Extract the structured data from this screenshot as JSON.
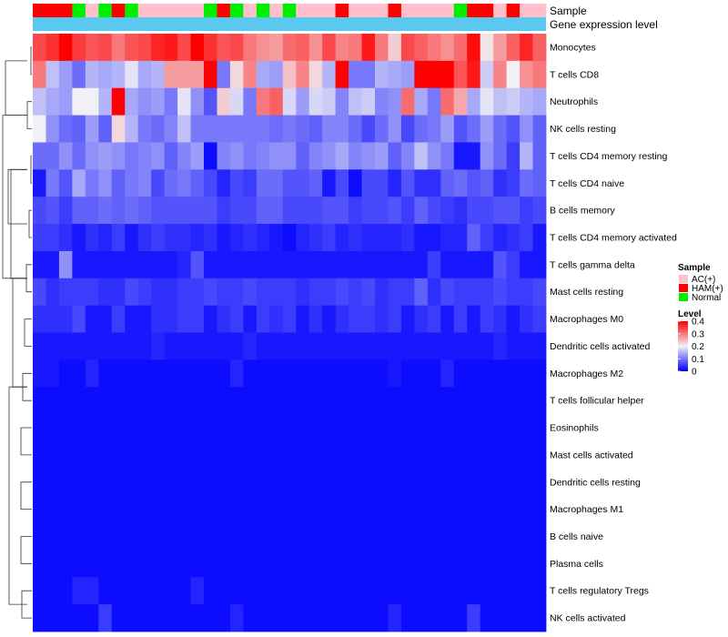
{
  "chart_data": {
    "type": "heatmap",
    "annotation_labels": {
      "sample": "Sample",
      "gene": "Gene expression level"
    },
    "sample_annotation": [
      "HAM(+)",
      "HAM(+)",
      "HAM(+)",
      "Normal",
      "AC(+)",
      "Normal",
      "HAM(+)",
      "Normal",
      "AC(+)",
      "AC(+)",
      "AC(+)",
      "AC(+)",
      "AC(+)",
      "Normal",
      "HAM(+)",
      "Normal",
      "AC(+)",
      "Normal",
      "AC(+)",
      "Normal",
      "AC(+)",
      "AC(+)",
      "AC(+)",
      "HAM(+)",
      "AC(+)",
      "AC(+)",
      "AC(+)",
      "HAM(+)",
      "AC(+)",
      "AC(+)",
      "AC(+)",
      "AC(+)",
      "Normal",
      "HAM(+)",
      "HAM(+)",
      "AC(+)",
      "HAM(+)",
      "AC(+)",
      "AC(+)"
    ],
    "sample_colors": {
      "AC(+)": "#FFC0CB",
      "HAM(+)": "#FF0000",
      "Normal": "#00EE00"
    },
    "gene_expression_color": "#5BC8F0",
    "rows": [
      "Monocytes",
      "T cells CD8",
      "Neutrophils",
      "NK cells resting",
      "T cells CD4 memory resting",
      "T cells CD4 naive",
      "B cells memory",
      "T cells CD4 memory activated",
      "T cells gamma delta",
      "Mast cells resting",
      "Macrophages M0",
      "Dendritic cells activated",
      "Macrophages M2",
      "T cells follicular helper",
      "Eosinophils",
      "Mast cells activated",
      "Dendritic cells resting",
      "Macrophages M1",
      "B cells naive",
      "Plasma cells",
      "T cells regulatory  Tregs",
      "NK cells activated"
    ],
    "values": [
      [
        0.34,
        0.36,
        0.4,
        0.35,
        0.33,
        0.34,
        0.3,
        0.33,
        0.34,
        0.37,
        0.38,
        0.34,
        0.4,
        0.36,
        0.33,
        0.34,
        0.3,
        0.28,
        0.27,
        0.31,
        0.32,
        0.28,
        0.34,
        0.29,
        0.3,
        0.38,
        0.3,
        0.23,
        0.34,
        0.32,
        0.3,
        0.28,
        0.31,
        0.39,
        0.21,
        0.27,
        0.32,
        0.37,
        0.32
      ],
      [
        0.3,
        0.16,
        0.13,
        0.09,
        0.15,
        0.14,
        0.15,
        0.19,
        0.14,
        0.15,
        0.27,
        0.27,
        0.27,
        0.4,
        0.1,
        0.22,
        0.29,
        0.14,
        0.13,
        0.24,
        0.29,
        0.22,
        0.15,
        0.4,
        0.1,
        0.1,
        0.15,
        0.14,
        0.13,
        0.4,
        0.4,
        0.4,
        0.33,
        0.38,
        0.17,
        0.29,
        0.2,
        0.28,
        0.3
      ],
      [
        0.16,
        0.14,
        0.13,
        0.2,
        0.2,
        0.15,
        0.4,
        0.14,
        0.12,
        0.13,
        0.1,
        0.19,
        0.12,
        0.07,
        0.23,
        0.18,
        0.1,
        0.3,
        0.32,
        0.18,
        0.13,
        0.18,
        0.17,
        0.11,
        0.16,
        0.17,
        0.11,
        0.12,
        0.31,
        0.14,
        0.1,
        0.31,
        0.26,
        0.14,
        0.19,
        0.16,
        0.17,
        0.15,
        0.14
      ],
      [
        0.2,
        0.12,
        0.09,
        0.08,
        0.13,
        0.08,
        0.22,
        0.15,
        0.1,
        0.09,
        0.11,
        0.16,
        0.1,
        0.1,
        0.1,
        0.1,
        0.1,
        0.1,
        0.09,
        0.1,
        0.09,
        0.08,
        0.11,
        0.11,
        0.09,
        0.06,
        0.09,
        0.12,
        0.06,
        0.09,
        0.1,
        0.13,
        0.07,
        0.09,
        0.13,
        0.09,
        0.07,
        0.12,
        0.08
      ],
      [
        0.09,
        0.09,
        0.12,
        0.09,
        0.12,
        0.13,
        0.12,
        0.1,
        0.11,
        0.12,
        0.08,
        0.11,
        0.13,
        0.01,
        0.11,
        0.12,
        0.1,
        0.11,
        0.12,
        0.12,
        0.08,
        0.11,
        0.12,
        0.14,
        0.11,
        0.12,
        0.13,
        0.08,
        0.11,
        0.16,
        0.12,
        0.1,
        0.02,
        0.02,
        0.12,
        0.09,
        0.05,
        0.15,
        0.08
      ],
      [
        0.02,
        0.1,
        0.07,
        0.14,
        0.1,
        0.12,
        0.08,
        0.1,
        0.11,
        0.06,
        0.09,
        0.1,
        0.08,
        0.06,
        0.03,
        0.06,
        0.05,
        0.09,
        0.09,
        0.07,
        0.07,
        0.08,
        0.02,
        0.06,
        0.01,
        0.06,
        0.06,
        0.03,
        0.07,
        0.04,
        0.04,
        0.08,
        0.09,
        0.07,
        0.08,
        0.04,
        0.05,
        0.09,
        0.08
      ],
      [
        0.06,
        0.07,
        0.05,
        0.08,
        0.08,
        0.09,
        0.08,
        0.09,
        0.08,
        0.07,
        0.07,
        0.07,
        0.07,
        0.07,
        0.05,
        0.06,
        0.06,
        0.08,
        0.08,
        0.06,
        0.06,
        0.06,
        0.07,
        0.07,
        0.05,
        0.06,
        0.06,
        0.07,
        0.05,
        0.08,
        0.06,
        0.05,
        0.04,
        0.06,
        0.06,
        0.07,
        0.07,
        0.05,
        0.06
      ],
      [
        0.05,
        0.05,
        0.04,
        0.02,
        0.04,
        0.03,
        0.05,
        0.02,
        0.04,
        0.05,
        0.04,
        0.04,
        0.03,
        0.04,
        0.02,
        0.03,
        0.04,
        0.03,
        0.02,
        0.01,
        0.03,
        0.04,
        0.05,
        0.03,
        0.04,
        0.03,
        0.03,
        0.03,
        0.04,
        0.02,
        0.02,
        0.03,
        0.03,
        0.08,
        0.05,
        0.03,
        0.04,
        0.05,
        0.02
      ],
      [
        0.02,
        0.02,
        0.12,
        0.02,
        0.02,
        0.02,
        0.02,
        0.02,
        0.02,
        0.02,
        0.02,
        0.03,
        0.07,
        0.02,
        0.02,
        0.02,
        0.02,
        0.02,
        0.02,
        0.02,
        0.02,
        0.02,
        0.02,
        0.02,
        0.02,
        0.02,
        0.02,
        0.02,
        0.02,
        0.02,
        0.05,
        0.02,
        0.02,
        0.02,
        0.02,
        0.07,
        0.05,
        0.02,
        0.02
      ],
      [
        0.06,
        0.04,
        0.05,
        0.05,
        0.05,
        0.04,
        0.04,
        0.06,
        0.05,
        0.04,
        0.04,
        0.05,
        0.05,
        0.06,
        0.05,
        0.05,
        0.06,
        0.05,
        0.05,
        0.05,
        0.04,
        0.05,
        0.05,
        0.06,
        0.05,
        0.06,
        0.04,
        0.05,
        0.05,
        0.08,
        0.04,
        0.06,
        0.05,
        0.05,
        0.05,
        0.06,
        0.05,
        0.05,
        0.06
      ],
      [
        0.04,
        0.04,
        0.04,
        0.06,
        0.02,
        0.02,
        0.05,
        0.02,
        0.02,
        0.04,
        0.04,
        0.05,
        0.05,
        0.02,
        0.04,
        0.05,
        0.02,
        0.05,
        0.04,
        0.05,
        0.02,
        0.04,
        0.02,
        0.04,
        0.05,
        0.05,
        0.04,
        0.05,
        0.02,
        0.04,
        0.05,
        0.02,
        0.05,
        0.02,
        0.05,
        0.04,
        0.02,
        0.04,
        0.05
      ],
      [
        0.02,
        0.02,
        0.02,
        0.02,
        0.02,
        0.02,
        0.02,
        0.02,
        0.02,
        0.03,
        0.02,
        0.02,
        0.02,
        0.02,
        0.02,
        0.02,
        0.03,
        0.02,
        0.02,
        0.02,
        0.02,
        0.02,
        0.02,
        0.02,
        0.02,
        0.02,
        0.02,
        0.02,
        0.02,
        0.02,
        0.02,
        0.02,
        0.02,
        0.02,
        0.02,
        0.03,
        0.02,
        0.02,
        0.02
      ],
      [
        0.02,
        0.02,
        0.01,
        0.01,
        0.03,
        0.01,
        0.01,
        0.01,
        0.01,
        0.01,
        0.01,
        0.01,
        0.01,
        0.01,
        0.01,
        0.03,
        0.01,
        0.01,
        0.01,
        0.01,
        0.01,
        0.01,
        0.01,
        0.01,
        0.01,
        0.01,
        0.01,
        0.02,
        0.01,
        0.01,
        0.01,
        0.03,
        0.01,
        0.01,
        0.01,
        0.01,
        0.01,
        0.01,
        0.01
      ],
      [
        0.01,
        0.01,
        0.01,
        0.01,
        0.01,
        0.01,
        0.01,
        0.01,
        0.01,
        0.01,
        0.01,
        0.01,
        0.01,
        0.01,
        0.01,
        0.01,
        0.01,
        0.01,
        0.01,
        0.01,
        0.01,
        0.01,
        0.01,
        0.01,
        0.01,
        0.01,
        0.01,
        0.01,
        0.01,
        0.01,
        0.01,
        0.01,
        0.01,
        0.01,
        0.01,
        0.01,
        0.01,
        0.01,
        0.01
      ],
      [
        0.01,
        0.01,
        0.01,
        0.01,
        0.01,
        0.01,
        0.01,
        0.01,
        0.01,
        0.01,
        0.01,
        0.01,
        0.01,
        0.01,
        0.01,
        0.01,
        0.01,
        0.01,
        0.01,
        0.01,
        0.01,
        0.01,
        0.01,
        0.01,
        0.01,
        0.01,
        0.01,
        0.01,
        0.01,
        0.01,
        0.01,
        0.01,
        0.01,
        0.01,
        0.01,
        0.01,
        0.01,
        0.01,
        0.01
      ],
      [
        0.01,
        0.01,
        0.01,
        0.01,
        0.01,
        0.01,
        0.01,
        0.01,
        0.01,
        0.01,
        0.01,
        0.01,
        0.01,
        0.01,
        0.01,
        0.01,
        0.01,
        0.01,
        0.01,
        0.01,
        0.01,
        0.01,
        0.01,
        0.01,
        0.01,
        0.01,
        0.01,
        0.01,
        0.01,
        0.01,
        0.01,
        0.01,
        0.01,
        0.01,
        0.01,
        0.01,
        0.01,
        0.01,
        0.01
      ],
      [
        0.01,
        0.01,
        0.01,
        0.01,
        0.01,
        0.01,
        0.01,
        0.01,
        0.01,
        0.01,
        0.01,
        0.01,
        0.01,
        0.01,
        0.01,
        0.01,
        0.01,
        0.01,
        0.01,
        0.01,
        0.01,
        0.01,
        0.01,
        0.01,
        0.01,
        0.01,
        0.01,
        0.01,
        0.01,
        0.01,
        0.01,
        0.01,
        0.01,
        0.01,
        0.01,
        0.01,
        0.01,
        0.01,
        0.01
      ],
      [
        0.01,
        0.01,
        0.01,
        0.01,
        0.01,
        0.01,
        0.01,
        0.01,
        0.01,
        0.01,
        0.01,
        0.01,
        0.01,
        0.01,
        0.01,
        0.01,
        0.01,
        0.01,
        0.01,
        0.01,
        0.01,
        0.01,
        0.01,
        0.01,
        0.01,
        0.01,
        0.01,
        0.01,
        0.01,
        0.01,
        0.01,
        0.01,
        0.01,
        0.01,
        0.01,
        0.01,
        0.01,
        0.01,
        0.01
      ],
      [
        0.01,
        0.01,
        0.01,
        0.01,
        0.01,
        0.01,
        0.01,
        0.01,
        0.01,
        0.01,
        0.01,
        0.01,
        0.01,
        0.01,
        0.01,
        0.01,
        0.01,
        0.01,
        0.01,
        0.01,
        0.01,
        0.01,
        0.01,
        0.01,
        0.01,
        0.01,
        0.01,
        0.01,
        0.01,
        0.01,
        0.01,
        0.01,
        0.01,
        0.01,
        0.01,
        0.01,
        0.01,
        0.01,
        0.01
      ],
      [
        0.01,
        0.01,
        0.01,
        0.01,
        0.01,
        0.01,
        0.01,
        0.01,
        0.01,
        0.01,
        0.01,
        0.01,
        0.01,
        0.01,
        0.01,
        0.01,
        0.01,
        0.01,
        0.01,
        0.01,
        0.01,
        0.01,
        0.01,
        0.01,
        0.01,
        0.01,
        0.01,
        0.01,
        0.01,
        0.01,
        0.01,
        0.01,
        0.01,
        0.01,
        0.01,
        0.01,
        0.01,
        0.01,
        0.01
      ],
      [
        0.01,
        0.01,
        0.01,
        0.03,
        0.03,
        0.01,
        0.01,
        0.01,
        0.01,
        0.01,
        0.01,
        0.01,
        0.03,
        0.01,
        0.01,
        0.01,
        0.01,
        0.01,
        0.01,
        0.01,
        0.01,
        0.01,
        0.01,
        0.01,
        0.01,
        0.01,
        0.01,
        0.01,
        0.01,
        0.01,
        0.01,
        0.01,
        0.01,
        0.01,
        0.01,
        0.01,
        0.01,
        0.01,
        0.01
      ],
      [
        0.01,
        0.01,
        0.01,
        0.01,
        0.01,
        0.05,
        0.01,
        0.01,
        0.01,
        0.01,
        0.01,
        0.01,
        0.01,
        0.01,
        0.01,
        0.03,
        0.01,
        0.01,
        0.01,
        0.01,
        0.01,
        0.01,
        0.01,
        0.01,
        0.01,
        0.01,
        0.01,
        0.03,
        0.01,
        0.01,
        0.01,
        0.01,
        0.01,
        0.05,
        0.01,
        0.01,
        0.01,
        0.01,
        0.01
      ]
    ],
    "dendrogram": [
      [
        0,
        1
      ],
      [
        2,
        3
      ],
      [
        4,
        5
      ],
      [
        6,
        7
      ],
      [
        8,
        9
      ],
      [
        10,
        11
      ],
      [
        12,
        13
      ],
      [
        14,
        15
      ],
      [
        16,
        17
      ],
      [
        18,
        19
      ],
      [
        20,
        21
      ],
      [
        22,
        23
      ],
      [
        24,
        25
      ],
      [
        26,
        27
      ],
      [
        28,
        29
      ],
      [
        30,
        31
      ],
      [
        32,
        33
      ],
      [
        34,
        35
      ],
      [
        36,
        37
      ],
      [
        38,
        39
      ],
      [
        40,
        41
      ]
    ],
    "legend": {
      "sample_title": "Sample",
      "sample_entries": [
        "AC(+)",
        "HAM(+)",
        "Normal"
      ],
      "level_title": "Level",
      "level_ticks": [
        "0.4",
        "0.3",
        "0.2",
        "0.1",
        "0"
      ],
      "scale": {
        "min": 0,
        "max": 0.4,
        "low_color": "#0000FF",
        "mid_color": "#F0F0F5",
        "high_color": "#FF0000"
      }
    }
  }
}
